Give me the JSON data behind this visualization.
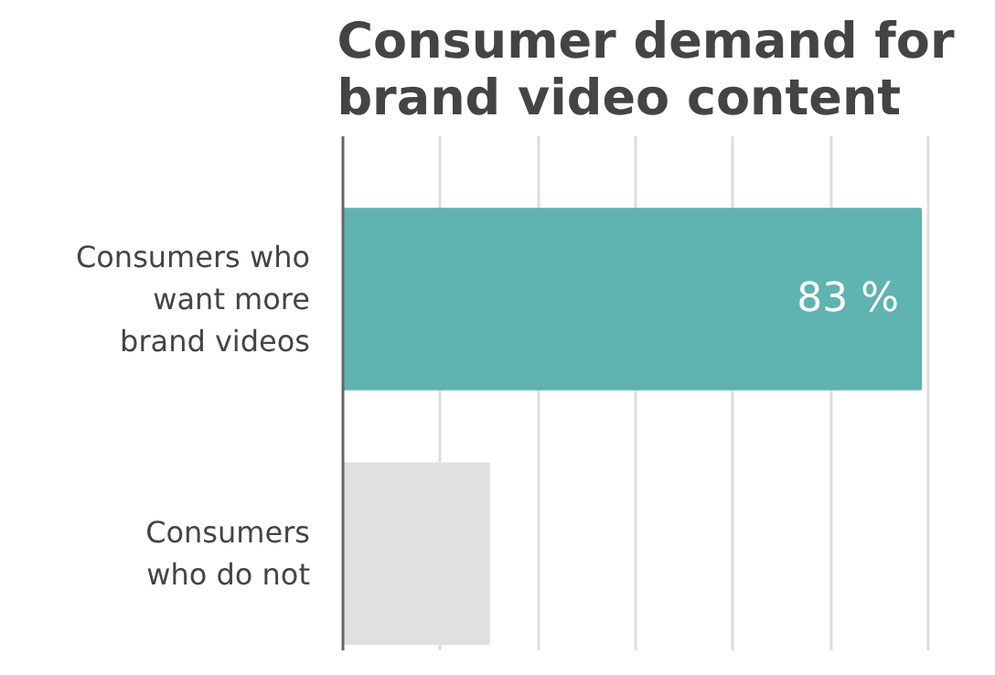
{
  "chart_data": {
    "type": "bar",
    "orientation": "horizontal",
    "title": "Consumer demand for\nbrand video content",
    "categories": [
      "Consumers who\nwant more\nbrand videos",
      "Consumers\nwho do not"
    ],
    "values": [
      83,
      21
    ],
    "colors": [
      "#5fb3b1",
      "#e0e0e0"
    ],
    "value_labels": [
      "83 %",
      null
    ],
    "xticks": [
      {
        "value": 14,
        "label": null
      },
      {
        "value": 28,
        "label": null
      },
      {
        "value": 42,
        "label": null
      },
      {
        "value": 56,
        "label": null
      },
      {
        "value": 70,
        "label": null
      },
      {
        "value": 84,
        "label": null
      }
    ],
    "grid": "x",
    "tick_labels": "y"
  }
}
